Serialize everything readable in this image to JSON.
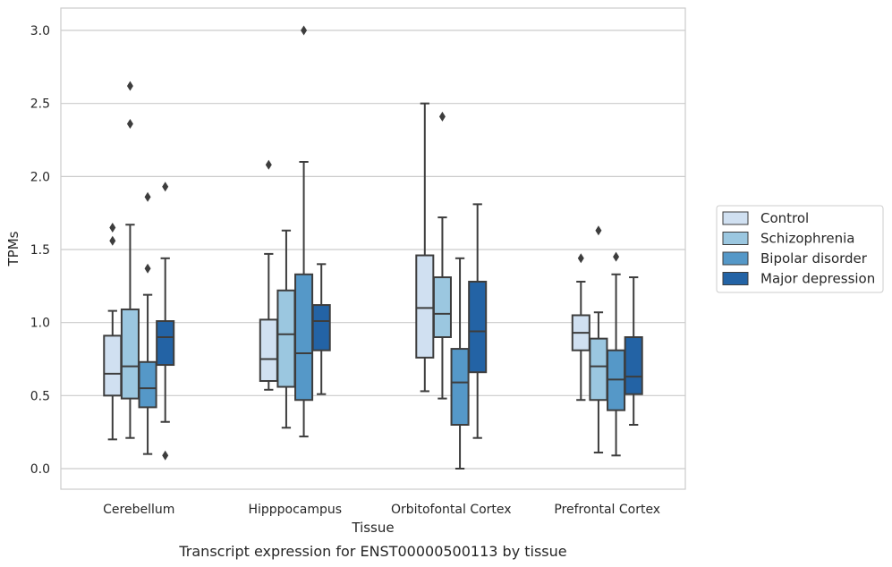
{
  "caption": "Transcript expression for ENST00000500113 by tissue",
  "chart_data": {
    "type": "box",
    "xlabel": "Tissue",
    "ylabel": "TPMs",
    "ylim": [
      -0.14,
      3.15
    ],
    "yticks": [
      "0.0",
      "0.5",
      "1.0",
      "1.5",
      "2.0",
      "2.5",
      "3.0"
    ],
    "grid": "horizontal",
    "legend_position": "right",
    "categories": [
      "Cerebellum",
      "Hipppocampus",
      "Orbitofontal Cortex",
      "Prefrontal Cortex"
    ],
    "series": [
      {
        "name": "Control",
        "color": "#d0e0f1",
        "boxes": [
          {
            "q1": 0.5,
            "median": 0.65,
            "q3": 0.91,
            "whisker_low": 0.2,
            "whisker_high": 1.08,
            "outliers": [
              1.56,
              1.65
            ]
          },
          {
            "q1": 0.6,
            "median": 0.75,
            "q3": 1.02,
            "whisker_low": 0.54,
            "whisker_high": 1.47,
            "outliers": [
              2.08
            ]
          },
          {
            "q1": 0.76,
            "median": 1.1,
            "q3": 1.46,
            "whisker_low": 0.53,
            "whisker_high": 2.5,
            "outliers": []
          },
          {
            "q1": 0.81,
            "median": 0.93,
            "q3": 1.05,
            "whisker_low": 0.47,
            "whisker_high": 1.28,
            "outliers": [
              1.44
            ]
          }
        ]
      },
      {
        "name": "Schizophrenia",
        "color": "#9bc7e0",
        "boxes": [
          {
            "q1": 0.48,
            "median": 0.7,
            "q3": 1.09,
            "whisker_low": 0.21,
            "whisker_high": 1.67,
            "outliers": [
              2.36,
              2.62
            ]
          },
          {
            "q1": 0.56,
            "median": 0.92,
            "q3": 1.22,
            "whisker_low": 0.28,
            "whisker_high": 1.63,
            "outliers": []
          },
          {
            "q1": 0.9,
            "median": 1.06,
            "q3": 1.31,
            "whisker_low": 0.48,
            "whisker_high": 1.72,
            "outliers": [
              2.41
            ]
          },
          {
            "q1": 0.47,
            "median": 0.7,
            "q3": 0.89,
            "whisker_low": 0.11,
            "whisker_high": 1.07,
            "outliers": [
              1.63
            ]
          }
        ]
      },
      {
        "name": "Bipolar disorder",
        "color": "#5598c8",
        "boxes": [
          {
            "q1": 0.42,
            "median": 0.55,
            "q3": 0.73,
            "whisker_low": 0.1,
            "whisker_high": 1.19,
            "outliers": [
              1.37,
              1.86
            ]
          },
          {
            "q1": 0.47,
            "median": 0.79,
            "q3": 1.33,
            "whisker_low": 0.22,
            "whisker_high": 2.1,
            "outliers": [
              3.0
            ]
          },
          {
            "q1": 0.3,
            "median": 0.59,
            "q3": 0.82,
            "whisker_low": 0.0,
            "whisker_high": 1.44,
            "outliers": []
          },
          {
            "q1": 0.4,
            "median": 0.61,
            "q3": 0.81,
            "whisker_low": 0.09,
            "whisker_high": 1.33,
            "outliers": [
              1.45
            ]
          }
        ]
      },
      {
        "name": "Major depression",
        "color": "#2363a5",
        "boxes": [
          {
            "q1": 0.71,
            "median": 0.9,
            "q3": 1.01,
            "whisker_low": 0.32,
            "whisker_high": 1.44,
            "outliers": [
              0.09,
              1.93
            ]
          },
          {
            "q1": 0.81,
            "median": 1.01,
            "q3": 1.12,
            "whisker_low": 0.51,
            "whisker_high": 1.4,
            "outliers": []
          },
          {
            "q1": 0.66,
            "median": 0.94,
            "q3": 1.28,
            "whisker_low": 0.21,
            "whisker_high": 1.81,
            "outliers": []
          },
          {
            "q1": 0.51,
            "median": 0.63,
            "q3": 0.9,
            "whisker_low": 0.3,
            "whisker_high": 1.31,
            "outliers": []
          }
        ]
      }
    ]
  }
}
